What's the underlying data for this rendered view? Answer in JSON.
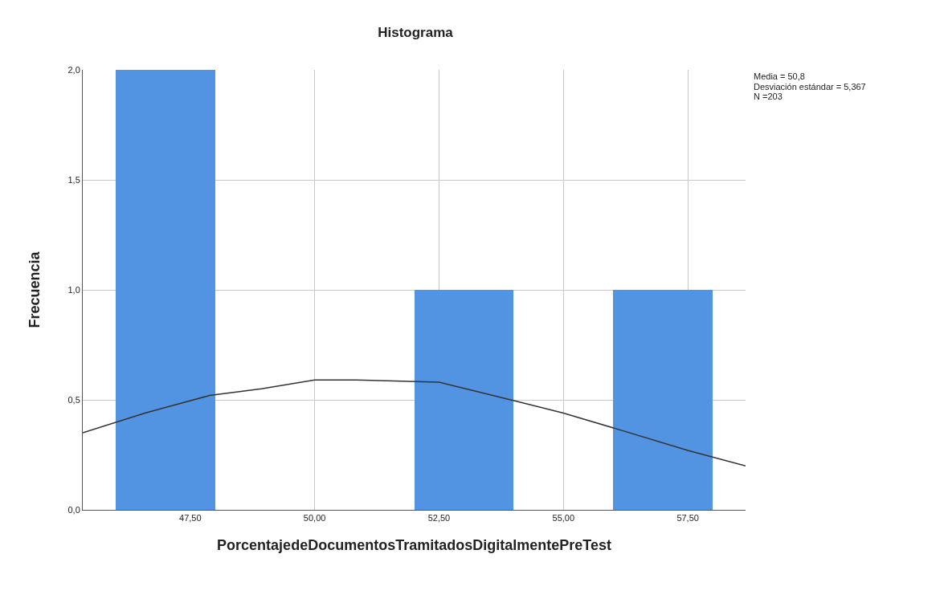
{
  "chart_data": {
    "type": "histogram",
    "title": "Histograma",
    "xlabel": "PorcentajedeDocumentosTramitadosDigitalmentePreTest",
    "ylabel": "Frecuencia",
    "bins": [
      46,
      48,
      50,
      52,
      54,
      56,
      58
    ],
    "values": [
      2,
      0,
      0,
      1,
      0,
      1
    ],
    "color": "#5294e2",
    "series": [
      {
        "type": "line",
        "color": "#333333",
        "x": [
          45.34,
          46.59,
          47.89,
          48.93,
          50.0,
          50.83,
          52.5,
          53.94,
          55.0,
          56.04,
          57.5,
          58.66
        ],
        "values": [
          0.35,
          0.44,
          0.52,
          0.55,
          0.59,
          0.59,
          0.58,
          0.5,
          0.44,
          0.37,
          0.27,
          0.2
        ]
      }
    ],
    "xlim": [
      45.34,
      58.66
    ],
    "ylim": [
      0,
      2.0
    ],
    "xticks": [
      {
        "value": 47.5,
        "label": "47,50"
      },
      {
        "value": 50,
        "label": "50,00"
      },
      {
        "value": 52.5,
        "label": "52,50"
      },
      {
        "value": 55,
        "label": "55,00"
      },
      {
        "value": 57.5,
        "label": "57,50"
      }
    ],
    "yticks": [
      {
        "value": 0,
        "label": "0,0"
      },
      {
        "value": 0.5,
        "label": "0,5"
      },
      {
        "value": 1.0,
        "label": "1,0"
      },
      {
        "value": 1.5,
        "label": "1,5"
      },
      {
        "value": 2.0,
        "label": "2,0"
      }
    ],
    "grid": true,
    "annotations": [
      "Media = 50,8",
      "Desviación estándar = 5,367",
      "N =203"
    ]
  }
}
